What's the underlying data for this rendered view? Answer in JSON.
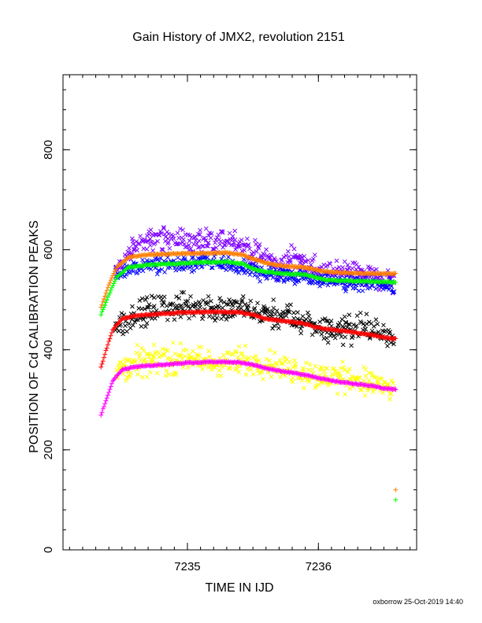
{
  "chart_data": {
    "type": "scatter",
    "title": "Gain History of JMX2, revolution 2151",
    "xlabel": "TIME IN IJD",
    "ylabel": "POSITION OF Cd CALIBRATION PEAKS",
    "footer": "oxborrow 25-Oct-2019 14:40",
    "xlim": [
      7234.05,
      7236.75
    ],
    "ylim": [
      0,
      950
    ],
    "x_ticks": [
      7235,
      7236
    ],
    "x_tick_labels": [
      "7235",
      "7236"
    ],
    "y_ticks": [
      0,
      200,
      400,
      600,
      800
    ],
    "y_tick_labels": [
      "0",
      "200",
      "400",
      "600",
      "800"
    ],
    "grid": false,
    "legend": "none",
    "x_range": [
      7234.34,
      7236.59
    ],
    "smooth_series": [
      {
        "color": "#ff7f00",
        "marker": "plus",
        "points": [
          [
            7234.34,
            485
          ],
          [
            7234.4,
            530
          ],
          [
            7234.46,
            565
          ],
          [
            7234.55,
            585
          ],
          [
            7234.7,
            590
          ],
          [
            7234.9,
            592
          ],
          [
            7235.1,
            593
          ],
          [
            7235.3,
            594
          ],
          [
            7235.42,
            590
          ],
          [
            7235.52,
            580
          ],
          [
            7235.62,
            572
          ],
          [
            7235.75,
            567
          ],
          [
            7235.9,
            565
          ],
          [
            7235.98,
            560
          ],
          [
            7236.05,
            556
          ],
          [
            7236.2,
            554
          ],
          [
            7236.3,
            553
          ],
          [
            7236.45,
            552
          ],
          [
            7236.59,
            552
          ]
        ]
      },
      {
        "color": "#00ff00",
        "marker": "plus",
        "points": [
          [
            7234.34,
            470
          ],
          [
            7234.4,
            510
          ],
          [
            7234.46,
            545
          ],
          [
            7234.55,
            565
          ],
          [
            7234.7,
            570
          ],
          [
            7234.9,
            572
          ],
          [
            7235.1,
            575
          ],
          [
            7235.3,
            576
          ],
          [
            7235.42,
            572
          ],
          [
            7235.52,
            560
          ],
          [
            7235.62,
            555
          ],
          [
            7235.75,
            552
          ],
          [
            7235.9,
            550
          ],
          [
            7235.98,
            545
          ],
          [
            7236.05,
            540
          ],
          [
            7236.2,
            538
          ],
          [
            7236.3,
            537
          ],
          [
            7236.45,
            536
          ],
          [
            7236.59,
            535
          ]
        ]
      },
      {
        "color": "#ff0000",
        "marker": "plus",
        "points": [
          [
            7234.34,
            365
          ],
          [
            7234.38,
            400
          ],
          [
            7234.43,
            440
          ],
          [
            7234.5,
            462
          ],
          [
            7234.6,
            468
          ],
          [
            7234.8,
            472
          ],
          [
            7235.0,
            475
          ],
          [
            7235.2,
            476
          ],
          [
            7235.4,
            475
          ],
          [
            7235.5,
            470
          ],
          [
            7235.6,
            462
          ],
          [
            7235.75,
            457
          ],
          [
            7235.88,
            453
          ],
          [
            7235.98,
            445
          ],
          [
            7236.1,
            440
          ],
          [
            7236.25,
            436
          ],
          [
            7236.4,
            430
          ],
          [
            7236.5,
            425
          ],
          [
            7236.59,
            422
          ]
        ]
      },
      {
        "color": "#ff00ff",
        "marker": "plus",
        "points": [
          [
            7234.34,
            270
          ],
          [
            7234.38,
            300
          ],
          [
            7234.43,
            338
          ],
          [
            7234.5,
            360
          ],
          [
            7234.6,
            366
          ],
          [
            7234.8,
            370
          ],
          [
            7235.0,
            374
          ],
          [
            7235.2,
            376
          ],
          [
            7235.4,
            375
          ],
          [
            7235.5,
            370
          ],
          [
            7235.62,
            362
          ],
          [
            7235.75,
            356
          ],
          [
            7235.9,
            350
          ],
          [
            7236.0,
            344
          ],
          [
            7236.1,
            338
          ],
          [
            7236.25,
            333
          ],
          [
            7236.4,
            328
          ],
          [
            7236.5,
            323
          ],
          [
            7236.59,
            321
          ]
        ]
      }
    ],
    "scatter_series": [
      {
        "color": "#7f00ff",
        "marker": "cross",
        "offset": 5,
        "spread": 22,
        "points": [
          [
            7234.45,
            550
          ],
          [
            7234.6,
            600
          ],
          [
            7234.7,
            615
          ],
          [
            7234.85,
            620
          ],
          [
            7235.0,
            612
          ],
          [
            7235.2,
            605
          ],
          [
            7235.35,
            618
          ],
          [
            7235.5,
            588
          ],
          [
            7235.6,
            578
          ],
          [
            7235.7,
            555
          ],
          [
            7235.8,
            580
          ],
          [
            7235.9,
            570
          ],
          [
            7236.05,
            545
          ],
          [
            7236.2,
            555
          ],
          [
            7236.35,
            548
          ],
          [
            7236.5,
            535
          ],
          [
            7236.58,
            528
          ]
        ]
      },
      {
        "color": "#0000ff",
        "marker": "cross",
        "offset": 0,
        "spread": 16,
        "points": [
          [
            7234.45,
            545
          ],
          [
            7234.6,
            565
          ],
          [
            7234.8,
            572
          ],
          [
            7235.0,
            570
          ],
          [
            7235.2,
            575
          ],
          [
            7235.4,
            565
          ],
          [
            7235.6,
            552
          ],
          [
            7235.8,
            550
          ],
          [
            7236.0,
            542
          ],
          [
            7236.2,
            535
          ],
          [
            7236.4,
            530
          ],
          [
            7236.58,
            525
          ]
        ]
      },
      {
        "color": "#000000",
        "marker": "cross",
        "offset": 0,
        "spread": 26,
        "points": [
          [
            7234.45,
            445
          ],
          [
            7234.6,
            470
          ],
          [
            7234.8,
            482
          ],
          [
            7235.0,
            488
          ],
          [
            7235.2,
            482
          ],
          [
            7235.4,
            480
          ],
          [
            7235.6,
            470
          ],
          [
            7235.8,
            462
          ],
          [
            7236.0,
            445
          ],
          [
            7236.15,
            440
          ],
          [
            7236.3,
            445
          ],
          [
            7236.45,
            440
          ],
          [
            7236.58,
            428
          ]
        ]
      },
      {
        "color": "#ffff00",
        "marker": "cross",
        "offset": 0,
        "spread": 28,
        "points": [
          [
            7234.45,
            360
          ],
          [
            7234.6,
            375
          ],
          [
            7234.8,
            380
          ],
          [
            7235.0,
            382
          ],
          [
            7235.2,
            372
          ],
          [
            7235.4,
            375
          ],
          [
            7235.6,
            375
          ],
          [
            7235.8,
            360
          ],
          [
            7236.0,
            345
          ],
          [
            7236.15,
            345
          ],
          [
            7236.3,
            340
          ],
          [
            7236.45,
            330
          ],
          [
            7236.58,
            315
          ]
        ]
      }
    ],
    "isolated_points": [
      {
        "color": "#ff7f00",
        "marker": "plus",
        "x": 7236.59,
        "y": 120
      },
      {
        "color": "#00ff00",
        "marker": "plus",
        "x": 7236.59,
        "y": 100
      }
    ]
  }
}
